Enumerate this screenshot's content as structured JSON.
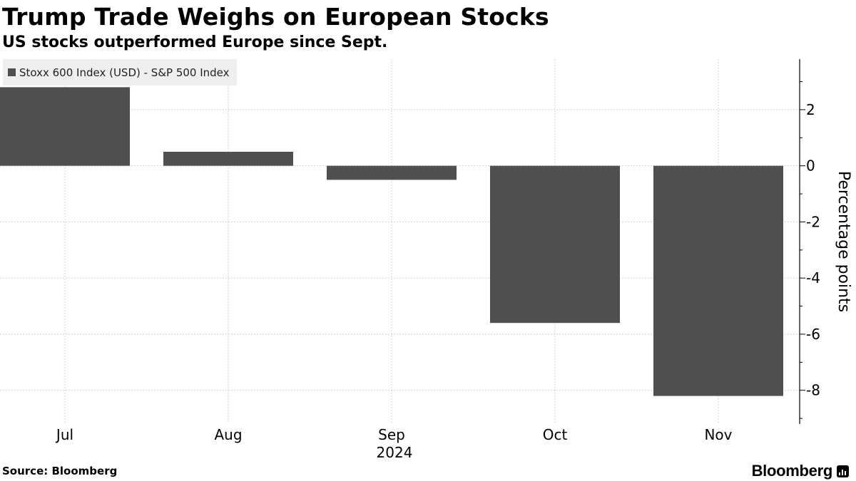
{
  "header": {
    "title": "Trump Trade Weighs on European Stocks",
    "subtitle": "US stocks outperformed Europe since Sept."
  },
  "footer": {
    "source": "Source: Bloomberg",
    "brand": "Bloomberg"
  },
  "colors": {
    "bar": "#4f4f4f",
    "grid": "#d0d0d0",
    "legend_bg": "#efefef"
  },
  "chart_data": {
    "type": "bar",
    "title": "Trump Trade Weighs on European Stocks",
    "subtitle": "US stocks outperformed Europe since Sept.",
    "categories": [
      "Jul",
      "Aug",
      "Sep",
      "Oct",
      "Nov"
    ],
    "year_label": "2024",
    "series": [
      {
        "name": "Stoxx 600 Index (USD) - S&P 500 Index",
        "values": [
          2.8,
          0.5,
          -0.5,
          -5.6,
          -8.2
        ]
      }
    ],
    "xlabel": "",
    "ylabel": "Percentage points",
    "ylim": [
      -9.2,
      3.8
    ],
    "yticks": [
      2,
      0,
      -2,
      -4,
      -6,
      -8
    ],
    "y_axis_side": "right",
    "grid": true,
    "legend_position": "top-left"
  }
}
